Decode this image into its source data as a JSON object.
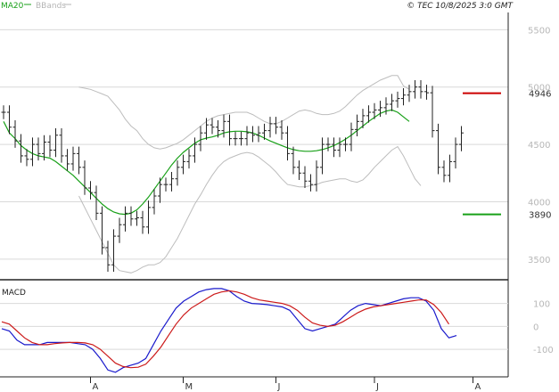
{
  "header": {
    "legend": [
      {
        "label": "MA20",
        "color": "#18a018"
      },
      {
        "label": "BBands",
        "color": "#b5b5b5"
      }
    ],
    "copyright": "© TEC 10/8/2025 3:0 GMT"
  },
  "colors": {
    "price_bar": "#222222",
    "ma20": "#18a018",
    "bbands": "#bdbdbd",
    "resistance": "#cc0000",
    "support": "#18a018",
    "macd": "#1a1acc",
    "signal": "#cc1a1a",
    "grid": "#d9d9d9",
    "axis_text": "#b7b7b7"
  },
  "chart_data": [
    {
      "type": "ohlc",
      "ylim": [
        3320,
        5650
      ],
      "y_ticks": [
        3500,
        4000,
        4500,
        5000,
        5500
      ],
      "y_tick_labels": [
        "3500",
        "4000",
        "4500",
        "5000",
        "5500"
      ],
      "x_tick_labels": [
        "A",
        "M",
        "J",
        "J",
        "A"
      ],
      "x_tick_index": [
        15,
        31,
        47,
        64,
        81
      ],
      "levels": [
        {
          "label": "4946",
          "value": 4946,
          "color": "#cc0000"
        },
        {
          "label": "3890",
          "value": 3890,
          "color": "#18a018"
        }
      ],
      "close": [
        4780,
        4650,
        4530,
        4400,
        4370,
        4500,
        4420,
        4520,
        4450,
        4580,
        4400,
        4330,
        4420,
        4300,
        4120,
        4080,
        3900,
        3600,
        3450,
        3700,
        3800,
        3900,
        3850,
        3860,
        3780,
        3950,
        4050,
        4150,
        4150,
        4200,
        4300,
        4350,
        4400,
        4500,
        4600,
        4670,
        4650,
        4620,
        4700,
        4550,
        4550,
        4550,
        4600,
        4580,
        4600,
        4620,
        4680,
        4650,
        4600,
        4420,
        4300,
        4250,
        4180,
        4150,
        4300,
        4500,
        4500,
        4450,
        4500,
        4500,
        4630,
        4700,
        4750,
        4780,
        4800,
        4820,
        4850,
        4880,
        4900,
        4930,
        4960,
        5000,
        4960,
        4950,
        4620,
        4300,
        4230,
        4350,
        4500,
        4600
      ],
      "ma20": [
        4700,
        4600,
        4550,
        4490,
        4450,
        4420,
        4400,
        4390,
        4380,
        4350,
        4310,
        4270,
        4230,
        4180,
        4130,
        4080,
        4030,
        3980,
        3940,
        3910,
        3895,
        3890,
        3900,
        3930,
        3980,
        4040,
        4110,
        4180,
        4250,
        4320,
        4380,
        4430,
        4470,
        4510,
        4540,
        4555,
        4565,
        4580,
        4600,
        4610,
        4615,
        4615,
        4610,
        4600,
        4580,
        4555,
        4530,
        4510,
        4490,
        4470,
        4455,
        4445,
        4440,
        4440,
        4445,
        4455,
        4470,
        4490,
        4515,
        4545,
        4580,
        4620,
        4660,
        4700,
        4735,
        4770,
        4790,
        4800,
        4780,
        4740,
        4700
      ],
      "ma20_start": 0,
      "bb_upper": [
        5000,
        4990,
        4980,
        4960,
        4940,
        4920,
        4860,
        4800,
        4720,
        4660,
        4620,
        4550,
        4500,
        4470,
        4460,
        4470,
        4490,
        4510,
        4540,
        4580,
        4620,
        4660,
        4700,
        4730,
        4750,
        4760,
        4770,
        4780,
        4780,
        4780,
        4760,
        4730,
        4700,
        4680,
        4680,
        4700,
        4730,
        4760,
        4790,
        4800,
        4790,
        4770,
        4760,
        4760,
        4770,
        4790,
        4830,
        4880,
        4930,
        4970,
        5000,
        5030,
        5060,
        5080,
        5100,
        5100,
        5010,
        4980
      ],
      "bb_upper_start": 13,
      "bb_lower": [
        4050,
        3950,
        3850,
        3750,
        3650,
        3550,
        3450,
        3400,
        3390,
        3380,
        3400,
        3430,
        3450,
        3450,
        3470,
        3520,
        3600,
        3680,
        3780,
        3880,
        3980,
        4060,
        4150,
        4230,
        4300,
        4350,
        4380,
        4400,
        4420,
        4430,
        4420,
        4390,
        4350,
        4310,
        4260,
        4200,
        4150,
        4140,
        4130,
        4130,
        4140,
        4150,
        4170,
        4180,
        4190,
        4200,
        4200,
        4180,
        4170,
        4190,
        4240,
        4300,
        4350,
        4400,
        4450,
        4480,
        4400,
        4300,
        4200,
        4140
      ],
      "bb_lower_start": 13
    },
    {
      "type": "line",
      "title": "MACD",
      "ylim": [
        -220,
        180
      ],
      "y_ticks": [
        100,
        0,
        -100
      ],
      "y_tick_labels": [
        "100",
        "0",
        "-100"
      ],
      "series": [
        {
          "name": "MACD",
          "color": "#1a1acc",
          "values": [
            -10,
            -20,
            -60,
            -80,
            -80,
            -80,
            -70,
            -70,
            -70,
            -70,
            -75,
            -80,
            -100,
            -140,
            -190,
            -200,
            -180,
            -170,
            -160,
            -140,
            -80,
            -20,
            30,
            80,
            110,
            130,
            150,
            160,
            165,
            165,
            155,
            130,
            110,
            100,
            98,
            95,
            90,
            85,
            70,
            30,
            -10,
            -20,
            -10,
            0,
            10,
            40,
            70,
            90,
            100,
            95,
            90,
            100,
            110,
            120,
            125,
            125,
            110,
            70,
            -10,
            -50,
            -40
          ]
        },
        {
          "name": "Signal",
          "color": "#cc1a1a",
          "values": [
            20,
            10,
            -20,
            -50,
            -70,
            -80,
            -80,
            -75,
            -72,
            -70,
            -70,
            -72,
            -80,
            -100,
            -130,
            -160,
            -175,
            -180,
            -178,
            -165,
            -130,
            -90,
            -40,
            10,
            50,
            80,
            100,
            120,
            140,
            150,
            155,
            150,
            140,
            125,
            115,
            110,
            105,
            100,
            90,
            70,
            40,
            15,
            5,
            0,
            5,
            20,
            40,
            60,
            75,
            85,
            90,
            95,
            100,
            105,
            110,
            115,
            115,
            95,
            60,
            10
          ]
        }
      ]
    }
  ]
}
